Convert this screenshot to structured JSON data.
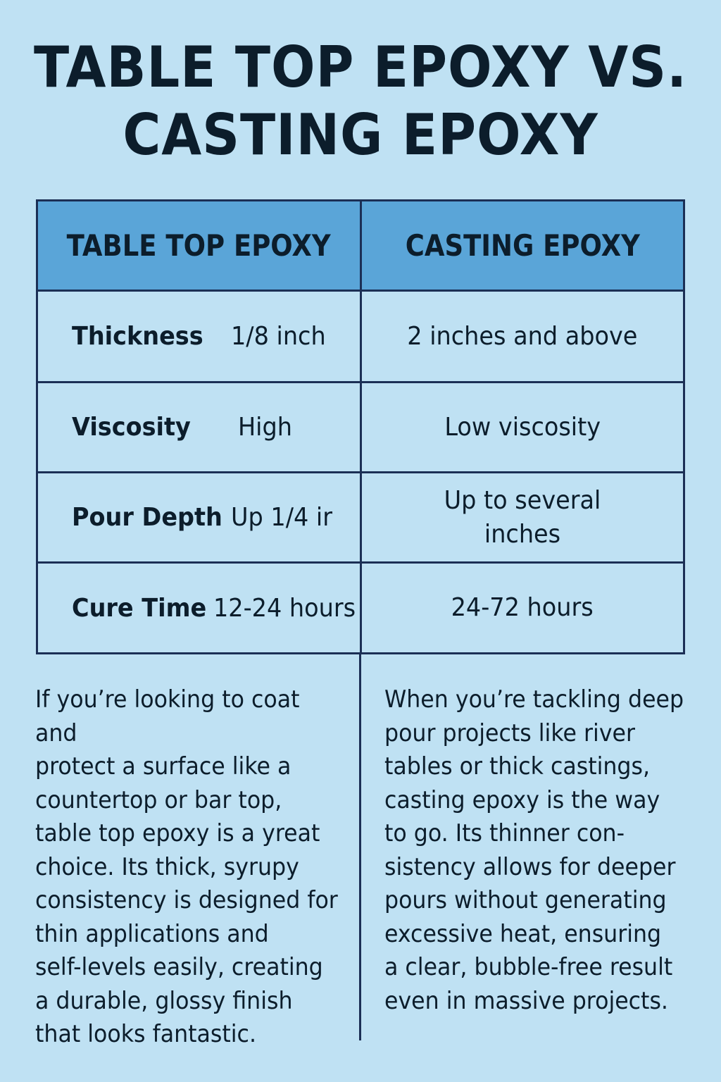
{
  "title": {
    "line1": "TABLE TOP EPOXY VS.",
    "line2": "CASTING EPOXY"
  },
  "table": {
    "headers": [
      "TABLE TOP EPOXY",
      "CASTING EPOXY"
    ],
    "rows": [
      {
        "label": "Thickness",
        "table_top": "1/8 inch",
        "casting": "2 inches and above"
      },
      {
        "label": "Viscosity",
        "table_top": "High",
        "casting": "Low viscosity"
      },
      {
        "label": "Pour Depth",
        "table_top": "Up 1/4 ir",
        "casting": "Up to several inches"
      },
      {
        "label": "Cure Time",
        "table_top": "12-24 hours",
        "casting": "24-72 hours"
      }
    ]
  },
  "descriptions": {
    "table_top": "If you’re looking to coat and\n  protect a surface like a\ncountertop or bar top,\ntable top epoxy is a yreat\nchoice. Its thick, syrupy\nconsistency is designed for\nthin applications and\nself-levels easily, creating\na durable, glossy finish\nthat looks fantastic.",
    "casting": "When you’re tackling deep\n pour projects like river\n tables or thick castings,\n casting epoxy is the way\n to go. Its thinner con-\n sistency allows for deeper\n pours without generating\n excessive heat, ensuring\n a clear, bubble-free result\n even in massive projects."
  },
  "colors": {
    "background": "#bfe1f3",
    "header_fill": "#5aa5d8",
    "border": "#1b2f55",
    "text": "#0c1d2b"
  }
}
